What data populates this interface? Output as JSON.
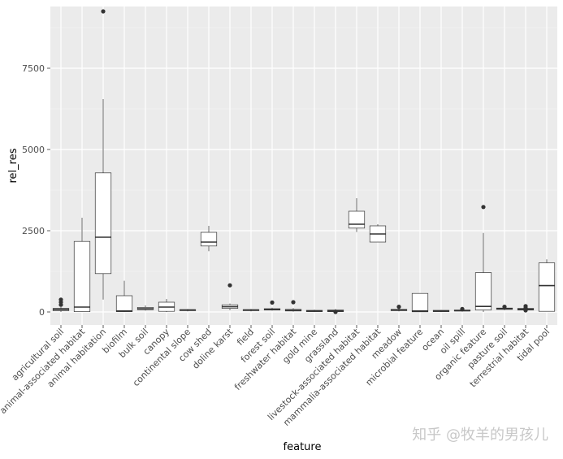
{
  "chart_data": {
    "type": "boxplot",
    "xlabel": "feature",
    "ylabel": "rel_res",
    "ylim": [
      -400,
      9400
    ],
    "yticks": [
      0,
      2500,
      5000,
      7500
    ],
    "grid": true,
    "categories": [
      "agricultural soil",
      "animal-associated habitat",
      "animal habitation",
      "biofilm",
      "bulk soil",
      "canopy",
      "continental slope",
      "cow shed",
      "doline karst",
      "field",
      "forest soil",
      "freshwater habitat",
      "gold mine",
      "grassland",
      "livestock-associated habitat",
      "mammalia-associated habitat",
      "meadow",
      "microbial feature",
      "ocean",
      "oil spill",
      "organic feature",
      "pasture soil",
      "terrestrial habitat",
      "tidal pool"
    ],
    "boxes": [
      {
        "lower": 0,
        "q1": 40,
        "median": 80,
        "q3": 110,
        "upper": 150,
        "outliers": [
          220,
          300,
          380
        ]
      },
      {
        "lower": 0,
        "q1": 10,
        "median": 150,
        "q3": 2170,
        "upper": 2900,
        "outliers": []
      },
      {
        "lower": 380,
        "q1": 1180,
        "median": 2300,
        "q3": 4280,
        "upper": 6550,
        "outliers": [
          9250
        ]
      },
      {
        "lower": 0,
        "q1": 10,
        "median": 30,
        "q3": 500,
        "upper": 960,
        "outliers": []
      },
      {
        "lower": 40,
        "q1": 70,
        "median": 100,
        "q3": 140,
        "upper": 200,
        "outliers": []
      },
      {
        "lower": 0,
        "q1": 20,
        "median": 150,
        "q3": 300,
        "upper": 400,
        "outliers": []
      },
      {
        "lower": 20,
        "q1": 40,
        "median": 60,
        "q3": 70,
        "upper": 90,
        "outliers": []
      },
      {
        "lower": 1870,
        "q1": 2030,
        "median": 2150,
        "q3": 2450,
        "upper": 2650,
        "outliers": []
      },
      {
        "lower": 50,
        "q1": 110,
        "median": 160,
        "q3": 220,
        "upper": 260,
        "outliers": [
          820
        ]
      },
      {
        "lower": 20,
        "q1": 40,
        "median": 60,
        "q3": 70,
        "upper": 90,
        "outliers": []
      },
      {
        "lower": 40,
        "q1": 60,
        "median": 80,
        "q3": 100,
        "upper": 130,
        "outliers": [
          290
        ]
      },
      {
        "lower": 10,
        "q1": 30,
        "median": 50,
        "q3": 80,
        "upper": 120,
        "outliers": [
          300
        ]
      },
      {
        "lower": 0,
        "q1": 10,
        "median": 30,
        "q3": 50,
        "upper": 70,
        "outliers": []
      },
      {
        "lower": 0,
        "q1": 10,
        "median": 30,
        "q3": 60,
        "upper": 90,
        "outliers": [
          0
        ]
      },
      {
        "lower": 2460,
        "q1": 2580,
        "median": 2700,
        "q3": 3100,
        "upper": 3500,
        "outliers": []
      },
      {
        "lower": 2150,
        "q1": 2150,
        "median": 2400,
        "q3": 2650,
        "upper": 2700,
        "outliers": []
      },
      {
        "lower": 20,
        "q1": 40,
        "median": 60,
        "q3": 80,
        "upper": 110,
        "outliers": [
          160
        ]
      },
      {
        "lower": 0,
        "q1": 5,
        "median": 30,
        "q3": 570,
        "upper": 570,
        "outliers": []
      },
      {
        "lower": 0,
        "q1": 10,
        "median": 30,
        "q3": 50,
        "upper": 60,
        "outliers": []
      },
      {
        "lower": 10,
        "q1": 30,
        "median": 40,
        "q3": 60,
        "upper": 70,
        "outliers": [
          90
        ]
      },
      {
        "lower": 0,
        "q1": 60,
        "median": 170,
        "q3": 1210,
        "upper": 2430,
        "outliers": [
          3230
        ]
      },
      {
        "lower": 50,
        "q1": 80,
        "median": 100,
        "q3": 120,
        "upper": 140,
        "outliers": [
          160
        ]
      },
      {
        "lower": 30,
        "q1": 60,
        "median": 80,
        "q3": 110,
        "upper": 140,
        "outliers": [
          50,
          120,
          180
        ]
      },
      {
        "lower": 20,
        "q1": 20,
        "median": 810,
        "q3": 1510,
        "upper": 1620,
        "outliers": []
      }
    ]
  },
  "watermark": "知乎 @牧羊的男孩儿",
  "colors": {
    "panel": "#ebebeb",
    "grid_major": "#ffffff",
    "grid_minor": "#f5f5f5",
    "box_fill": "#ffffff",
    "box_stroke": "#333333",
    "tick": "#333333"
  }
}
